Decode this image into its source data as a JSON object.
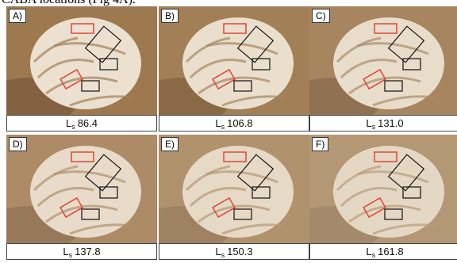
{
  "header": {
    "text": "CABA locations (Fig 4A)."
  },
  "panels": [
    {
      "label": "A)",
      "caption": {
        "symbol": "L",
        "subscript": "s",
        "value": "86.4"
      }
    },
    {
      "label": "B)",
      "caption": {
        "symbol": "L",
        "subscript": "s",
        "value": "106.8"
      }
    },
    {
      "label": "C)",
      "caption": {
        "symbol": "L",
        "subscript": "s",
        "value": "131.0"
      }
    },
    {
      "label": "D)",
      "caption": {
        "symbol": "L",
        "subscript": "s",
        "value": "137.8"
      }
    },
    {
      "label": "E)",
      "caption": {
        "symbol": "L",
        "subscript": "s",
        "value": "150.3"
      }
    },
    {
      "label": "F)",
      "caption": {
        "symbol": "L",
        "subscript": "s",
        "value": "161.8"
      }
    }
  ]
}
